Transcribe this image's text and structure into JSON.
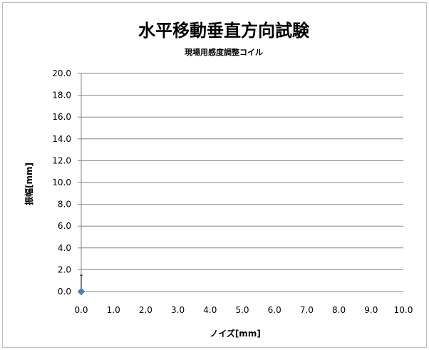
{
  "chart_data": {
    "type": "scatter",
    "title": "水平移動垂直方向試験",
    "subtitle": "現場用感度調整コイル",
    "xlabel": "ノイズ[mm]",
    "ylabel": "振幅[mm]",
    "xlim": [
      0,
      10
    ],
    "ylim": [
      0,
      20
    ],
    "xticks": [
      "0.0",
      "1.0",
      "2.0",
      "3.0",
      "4.0",
      "5.0",
      "6.0",
      "7.0",
      "8.0",
      "9.0",
      "10.0"
    ],
    "yticks": [
      "0.0",
      "2.0",
      "4.0",
      "6.0",
      "8.0",
      "10.0",
      "12.0",
      "14.0",
      "16.0",
      "18.0",
      "20.0"
    ],
    "grid": "horizontal",
    "series": [
      {
        "points": [
          {
            "x": 0.0,
            "y": 0.0,
            "error_y": 1.5
          }
        ],
        "color": "#4f81bd",
        "marker": "diamond"
      }
    ]
  }
}
